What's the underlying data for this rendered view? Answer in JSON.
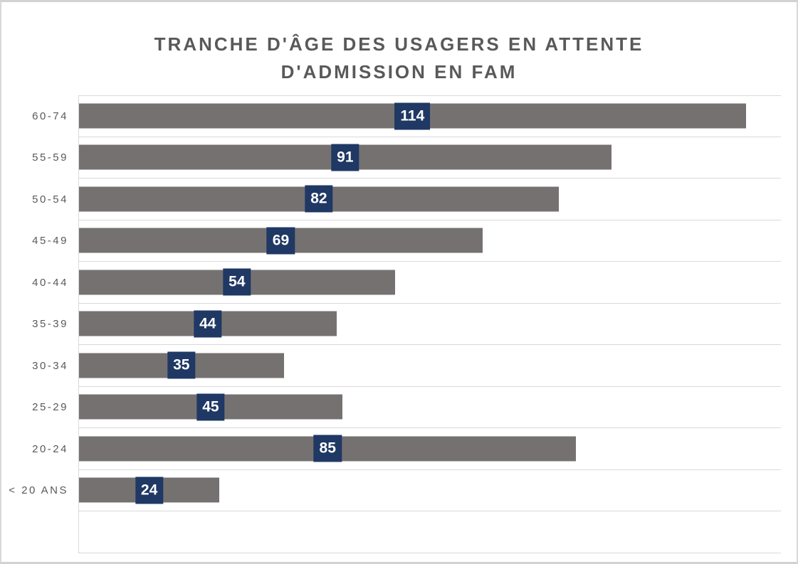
{
  "title": {
    "lines": [
      "TRANCHE D'ÂGE DES USAGERS EN ATTENTE",
      "D'ADMISSION EN FAM"
    ],
    "full": "TRANCHE D'ÂGE DES USAGERS EN ATTENTE D'ADMISSION EN FAM"
  },
  "chart_data": {
    "type": "bar",
    "orientation": "horizontal",
    "title": "TRANCHE D'ÂGE DES USAGERS EN ATTENTE D'ADMISSION EN FAM",
    "categories": [
      "60-74",
      "55-59",
      "50-54",
      "45-49",
      "40-44",
      "35-39",
      "30-34",
      "25-29",
      "20-24",
      "< 20 ANS"
    ],
    "values": [
      114,
      91,
      82,
      69,
      54,
      44,
      35,
      45,
      85,
      24
    ],
    "xlabel": "",
    "ylabel": "",
    "xlim": [
      0,
      120
    ],
    "value_labels": {
      "position": "center",
      "background": "#1F3864",
      "text_color": "#FFFFFF"
    },
    "bar_color": "#767171",
    "gridlines": {
      "category_boundaries": true,
      "color": "#D9D9D9"
    },
    "legend": "none",
    "layout": {
      "extra_empty_rows": 1
    }
  },
  "colors": {
    "title_text": "#595959",
    "axis_text": "#595959",
    "bar": "#767171",
    "label_box": "#1F3864",
    "label_text": "#FFFFFF",
    "gridline": "#D9D9D9",
    "frame_border": "#D2D2D2",
    "background": "#FFFFFF"
  }
}
